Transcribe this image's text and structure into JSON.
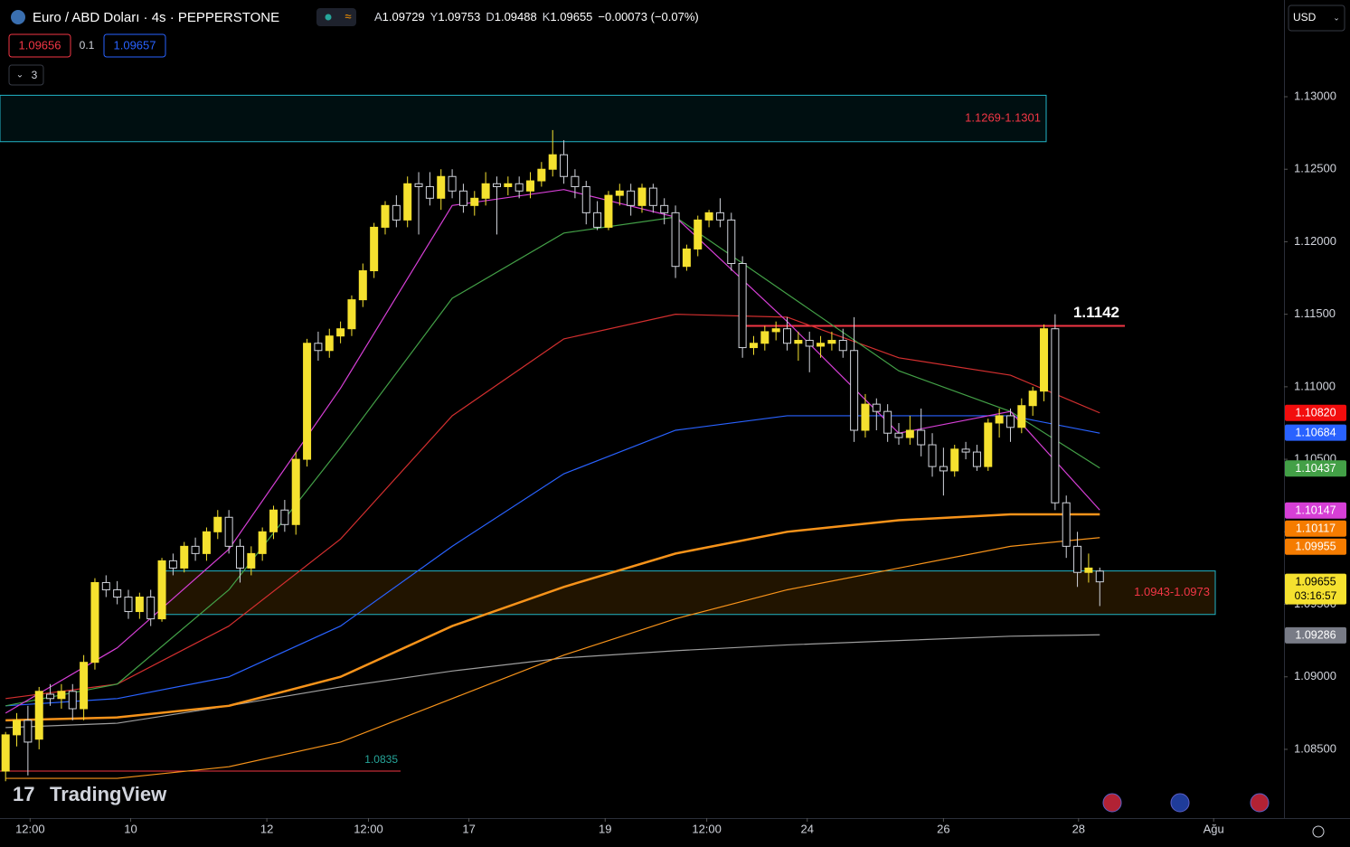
{
  "header": {
    "symbol": "Euro / ABD Doları · 4s · PEPPERSTONE",
    "ohlc": [
      {
        "label": "A",
        "value": "1.09729"
      },
      {
        "label": "Y",
        "value": "1.09753"
      },
      {
        "label": "D",
        "value": "1.09488"
      },
      {
        "label": "K",
        "value": "1.09655"
      }
    ],
    "change": "−0.00073 (−0.07%)",
    "sell": "1.09656",
    "spread": "0.1",
    "buy": "1.09657",
    "indicators": "3",
    "currency": "USD",
    "watermark": "TradingView"
  },
  "chart_data": {
    "type": "candlestick",
    "up_color": "#f5e12f",
    "down_color": "#000000",
    "outline_color": "#d1d4dc",
    "xlim": [
      -0.5,
      114.5
    ],
    "ylim": [
      1.08026,
      1.13667
    ],
    "xticks": [
      {
        "value": 2.2,
        "label": "12:00"
      },
      {
        "value": 11.2,
        "label": "10"
      },
      {
        "value": 23.4,
        "label": "12"
      },
      {
        "value": 32.5,
        "label": "12:00"
      },
      {
        "value": 41.5,
        "label": "17"
      },
      {
        "value": 53.7,
        "label": "19"
      },
      {
        "value": 62.8,
        "label": "12:00"
      },
      {
        "value": 71.8,
        "label": "24"
      },
      {
        "value": 84,
        "label": "26"
      },
      {
        "value": 96.1,
        "label": "28"
      },
      {
        "value": 108.2,
        "label": "Ağu"
      }
    ],
    "yticks": [
      {
        "value": 1.13,
        "label": "1.13000"
      },
      {
        "value": 1.125,
        "label": "1.12500"
      },
      {
        "value": 1.12,
        "label": "1.12000"
      },
      {
        "value": 1.115,
        "label": "1.11500"
      },
      {
        "value": 1.11,
        "label": "1.11000"
      },
      {
        "value": 1.105,
        "label": "1.10500"
      },
      {
        "value": 1.1,
        "label": "1.10000"
      },
      {
        "value": 1.095,
        "label": "1.09500"
      },
      {
        "value": 1.09,
        "label": "1.09000"
      },
      {
        "value": 1.085,
        "label": "1.08500"
      }
    ],
    "candles": [
      [
        1.0835,
        1.0862,
        1.0828,
        1.086
      ],
      [
        1.086,
        1.0875,
        1.0852,
        1.087
      ],
      [
        1.087,
        1.088,
        1.0832,
        1.0855
      ],
      [
        1.0857,
        1.0893,
        1.085,
        1.089
      ],
      [
        1.0888,
        1.0895,
        1.088,
        1.0885
      ],
      [
        1.0885,
        1.0895,
        1.0878,
        1.089
      ],
      [
        1.089,
        1.0895,
        1.087,
        1.0878
      ],
      [
        1.0878,
        1.0915,
        1.087,
        1.091
      ],
      [
        1.091,
        1.0968,
        1.0905,
        1.0965
      ],
      [
        1.0965,
        1.097,
        1.0955,
        1.096
      ],
      [
        1.096,
        1.0966,
        1.095,
        1.0955
      ],
      [
        1.0955,
        1.096,
        1.094,
        1.0945
      ],
      [
        1.0945,
        1.0958,
        1.094,
        1.0955
      ],
      [
        1.0955,
        1.096,
        1.0935,
        1.094
      ],
      [
        1.094,
        1.0982,
        1.0938,
        1.098
      ],
      [
        1.098,
        1.0985,
        1.097,
        1.0975
      ],
      [
        1.0975,
        1.0993,
        1.0972,
        1.099
      ],
      [
        1.099,
        1.0996,
        1.098,
        1.0985
      ],
      [
        1.0985,
        1.1003,
        1.098,
        1.1
      ],
      [
        1.1,
        1.1015,
        1.0995,
        1.101
      ],
      [
        1.101,
        1.1015,
        1.0985,
        1.099
      ],
      [
        1.099,
        1.0995,
        1.0965,
        1.0975
      ],
      [
        1.0975,
        1.099,
        1.097,
        1.0985
      ],
      [
        1.0985,
        1.1003,
        1.098,
        1.1
      ],
      [
        1.1,
        1.1018,
        1.0995,
        1.1015
      ],
      [
        1.1015,
        1.1022,
        1.1,
        1.1005
      ],
      [
        1.1005,
        1.1055,
        1.0998,
        1.105
      ],
      [
        1.105,
        1.1133,
        1.1045,
        1.113
      ],
      [
        1.113,
        1.1138,
        1.1118,
        1.1125
      ],
      [
        1.1125,
        1.114,
        1.112,
        1.1135
      ],
      [
        1.1135,
        1.1145,
        1.113,
        1.114
      ],
      [
        1.114,
        1.1163,
        1.1135,
        1.116
      ],
      [
        1.116,
        1.1185,
        1.1155,
        1.118
      ],
      [
        1.118,
        1.1213,
        1.1175,
        1.121
      ],
      [
        1.121,
        1.1228,
        1.1205,
        1.1225
      ],
      [
        1.1225,
        1.1232,
        1.121,
        1.1215
      ],
      [
        1.1215,
        1.1245,
        1.121,
        1.124
      ],
      [
        1.124,
        1.1248,
        1.1205,
        1.1238
      ],
      [
        1.1238,
        1.1248,
        1.1225,
        1.123
      ],
      [
        1.123,
        1.125,
        1.1222,
        1.1245
      ],
      [
        1.1245,
        1.125,
        1.123,
        1.1235
      ],
      [
        1.1235,
        1.124,
        1.122,
        1.1225
      ],
      [
        1.1225,
        1.1235,
        1.1218,
        1.123
      ],
      [
        1.123,
        1.1248,
        1.1225,
        1.124
      ],
      [
        1.124,
        1.1245,
        1.1205,
        1.1238
      ],
      [
        1.1238,
        1.1245,
        1.1232,
        1.124
      ],
      [
        1.124,
        1.1245,
        1.123,
        1.1235
      ],
      [
        1.1235,
        1.1248,
        1.123,
        1.1242
      ],
      [
        1.1242,
        1.1255,
        1.1238,
        1.125
      ],
      [
        1.125,
        1.1277,
        1.1245,
        1.126
      ],
      [
        1.126,
        1.127,
        1.124,
        1.1245
      ],
      [
        1.1245,
        1.125,
        1.123,
        1.1238
      ],
      [
        1.1238,
        1.1242,
        1.1212,
        1.122
      ],
      [
        1.122,
        1.1228,
        1.1208,
        1.121
      ],
      [
        1.121,
        1.1235,
        1.1208,
        1.1232
      ],
      [
        1.1232,
        1.124,
        1.1225,
        1.1235
      ],
      [
        1.1235,
        1.124,
        1.1218,
        1.1225
      ],
      [
        1.1225,
        1.124,
        1.122,
        1.1237
      ],
      [
        1.1237,
        1.124,
        1.122,
        1.1225
      ],
      [
        1.1225,
        1.123,
        1.1212,
        1.122
      ],
      [
        1.122,
        1.1225,
        1.1175,
        1.1183
      ],
      [
        1.1183,
        1.1198,
        1.118,
        1.1195
      ],
      [
        1.1195,
        1.1218,
        1.119,
        1.1215
      ],
      [
        1.1215,
        1.1222,
        1.121,
        1.122
      ],
      [
        1.122,
        1.123,
        1.121,
        1.1215
      ],
      [
        1.1215,
        1.122,
        1.118,
        1.1185
      ],
      [
        1.1185,
        1.119,
        1.112,
        1.1127
      ],
      [
        1.1127,
        1.1135,
        1.1122,
        1.113
      ],
      [
        1.113,
        1.1142,
        1.1125,
        1.1138
      ],
      [
        1.1138,
        1.1145,
        1.1132,
        1.114
      ],
      [
        1.114,
        1.1148,
        1.1125,
        1.113
      ],
      [
        1.113,
        1.1138,
        1.1118,
        1.1132
      ],
      [
        1.1132,
        1.1138,
        1.111,
        1.1128
      ],
      [
        1.1128,
        1.1135,
        1.112,
        1.113
      ],
      [
        1.113,
        1.1138,
        1.1125,
        1.1132
      ],
      [
        1.1132,
        1.114,
        1.112,
        1.1125
      ],
      [
        1.1125,
        1.1148,
        1.1062,
        1.107
      ],
      [
        1.107,
        1.1095,
        1.1065,
        1.1088
      ],
      [
        1.1088,
        1.1092,
        1.107,
        1.1083
      ],
      [
        1.1083,
        1.1088,
        1.1062,
        1.1068
      ],
      [
        1.1068,
        1.1075,
        1.106,
        1.1065
      ],
      [
        1.1065,
        1.108,
        1.106,
        1.107
      ],
      [
        1.107,
        1.1085,
        1.1052,
        1.106
      ],
      [
        1.106,
        1.1068,
        1.1038,
        1.1045
      ],
      [
        1.1045,
        1.1058,
        1.1025,
        1.1042
      ],
      [
        1.1042,
        1.106,
        1.1038,
        1.1057
      ],
      [
        1.1057,
        1.1062,
        1.105,
        1.1055
      ],
      [
        1.1055,
        1.106,
        1.1042,
        1.1045
      ],
      [
        1.1045,
        1.1078,
        1.1042,
        1.1075
      ],
      [
        1.1075,
        1.1085,
        1.1065,
        1.108
      ],
      [
        1.108,
        1.1085,
        1.1062,
        1.1072
      ],
      [
        1.1072,
        1.1092,
        1.1068,
        1.1087
      ],
      [
        1.1087,
        1.11,
        1.108,
        1.1097
      ],
      [
        1.1097,
        1.1143,
        1.109,
        1.114
      ],
      [
        1.114,
        1.115,
        1.1015,
        1.102
      ],
      [
        1.102,
        1.1025,
        1.0982,
        1.099
      ],
      [
        1.099,
        1.1,
        1.0962,
        1.0972
      ],
      [
        1.0972,
        1.0985,
        1.0965,
        1.0975
      ],
      [
        1.09729,
        1.09753,
        1.09488,
        1.09655
      ]
    ],
    "x": [
      0,
      10,
      20,
      30,
      40,
      50,
      60,
      70,
      80,
      90,
      98
    ],
    "series": [
      {
        "color": "#9e9e9e",
        "width": 1.2,
        "values": [
          1.0865,
          1.0868,
          1.088,
          1.0893,
          1.0904,
          1.0913,
          1.0918,
          1.0922,
          1.0925,
          1.0928,
          1.0929
        ]
      },
      {
        "color": "#f7931a",
        "width": 1.2,
        "values": [
          1.083,
          1.083,
          1.0838,
          1.0855,
          1.0885,
          1.0915,
          1.094,
          1.096,
          1.0975,
          1.099,
          1.0996
        ]
      },
      {
        "color": "#f7931a",
        "width": 2.5,
        "values": [
          1.087,
          1.0872,
          1.088,
          1.09,
          1.0935,
          1.0962,
          1.0985,
          1.1,
          1.1008,
          1.1012,
          1.1012
        ]
      },
      {
        "color": "#2962ff",
        "width": 1.2,
        "values": [
          1.088,
          1.0885,
          1.09,
          1.0935,
          1.099,
          1.104,
          1.107,
          1.108,
          1.108,
          1.108,
          1.1068
        ]
      },
      {
        "color": "#d32f2f",
        "width": 1.2,
        "values": [
          1.0885,
          1.0895,
          1.0935,
          1.0995,
          1.108,
          1.1133,
          1.115,
          1.1148,
          1.112,
          1.1108,
          1.1082
        ]
      },
      {
        "color": "#43a047",
        "width": 1.2,
        "values": [
          1.088,
          1.0895,
          1.096,
          1.1058,
          1.1161,
          1.1206,
          1.1217,
          1.1164,
          1.1111,
          1.1083,
          1.1044
        ]
      },
      {
        "color": "#d63fd6",
        "width": 1.2,
        "values": [
          1.0875,
          1.092,
          1.0988,
          1.1099,
          1.1225,
          1.1236,
          1.1217,
          1.1145,
          1.1068,
          1.1083,
          1.1015
        ]
      }
    ],
    "zones": [
      {
        "low": 1.1269,
        "high": 1.1301,
        "label": "1.1269-1.1301"
      },
      {
        "low": 1.0943,
        "high": 1.0973,
        "label": "1.0943-1.0973"
      }
    ],
    "levels": [
      {
        "value": 1.1142,
        "label": "1.1142",
        "color": "#f23645"
      },
      {
        "value": 1.0835,
        "label": "1.0835",
        "color": "#f23645"
      }
    ],
    "price_badges": [
      {
        "value": 1.1082,
        "label": "1.10820",
        "color": "#f20d0d"
      },
      {
        "value": 1.10684,
        "label": "1.10684",
        "color": "#2962ff"
      },
      {
        "value": 1.10437,
        "label": "1.10437",
        "color": "#43a047"
      },
      {
        "value": 1.10147,
        "label": "1.10147",
        "color": "#d63fd6"
      },
      {
        "value": 1.10117,
        "label": "1.10117",
        "color": "#f57c00"
      },
      {
        "value": 1.09955,
        "label": "1.09955",
        "color": "#f57c00"
      },
      {
        "value": 1.09655,
        "label": "1.09655",
        "color": "#f5e12f",
        "countdown": "03:16:57"
      },
      {
        "value": 1.09286,
        "label": "1.09286",
        "color": "#787b86"
      }
    ]
  }
}
